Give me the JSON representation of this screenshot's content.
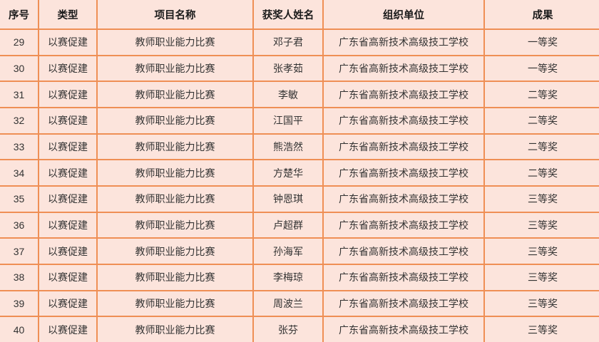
{
  "colors": {
    "background": "#fce4dc",
    "border": "#ef8f55",
    "text": "#333333"
  },
  "table": {
    "columns": [
      {
        "key": "index",
        "label": "序号"
      },
      {
        "key": "type",
        "label": "类型"
      },
      {
        "key": "project",
        "label": "项目名称"
      },
      {
        "key": "winner",
        "label": "获奖人姓名"
      },
      {
        "key": "organization",
        "label": "组织单位"
      },
      {
        "key": "result",
        "label": "成果"
      }
    ],
    "rows": [
      {
        "index": "29",
        "type": "以赛促建",
        "project": "教师职业能力比赛",
        "winner": "邓子君",
        "organization": "广东省高新技术高级技工学校",
        "result": "一等奖"
      },
      {
        "index": "30",
        "type": "以赛促建",
        "project": "教师职业能力比赛",
        "winner": "张孝茹",
        "organization": "广东省高新技术高级技工学校",
        "result": "一等奖"
      },
      {
        "index": "31",
        "type": "以赛促建",
        "project": "教师职业能力比赛",
        "winner": "李敏",
        "organization": "广东省高新技术高级技工学校",
        "result": "二等奖"
      },
      {
        "index": "32",
        "type": "以赛促建",
        "project": "教师职业能力比赛",
        "winner": "江国平",
        "organization": "广东省高新技术高级技工学校",
        "result": "二等奖"
      },
      {
        "index": "33",
        "type": "以赛促建",
        "project": "教师职业能力比赛",
        "winner": "熊浩然",
        "organization": "广东省高新技术高级技工学校",
        "result": "二等奖"
      },
      {
        "index": "34",
        "type": "以赛促建",
        "project": "教师职业能力比赛",
        "winner": "方楚华",
        "organization": "广东省高新技术高级技工学校",
        "result": "二等奖"
      },
      {
        "index": "35",
        "type": "以赛促建",
        "project": "教师职业能力比赛",
        "winner": "钟恩琪",
        "organization": "广东省高新技术高级技工学校",
        "result": "三等奖"
      },
      {
        "index": "36",
        "type": "以赛促建",
        "project": "教师职业能力比赛",
        "winner": "卢超群",
        "organization": "广东省高新技术高级技工学校",
        "result": "三等奖"
      },
      {
        "index": "37",
        "type": "以赛促建",
        "project": "教师职业能力比赛",
        "winner": "孙海军",
        "organization": "广东省高新技术高级技工学校",
        "result": "三等奖"
      },
      {
        "index": "38",
        "type": "以赛促建",
        "project": "教师职业能力比赛",
        "winner": "李梅琼",
        "organization": "广东省高新技术高级技工学校",
        "result": "三等奖"
      },
      {
        "index": "39",
        "type": "以赛促建",
        "project": "教师职业能力比赛",
        "winner": "周波兰",
        "organization": "广东省高新技术高级技工学校",
        "result": "三等奖"
      },
      {
        "index": "40",
        "type": "以赛促建",
        "project": "教师职业能力比赛",
        "winner": "张芬",
        "organization": "广东省高新技术高级技工学校",
        "result": "三等奖"
      }
    ]
  }
}
